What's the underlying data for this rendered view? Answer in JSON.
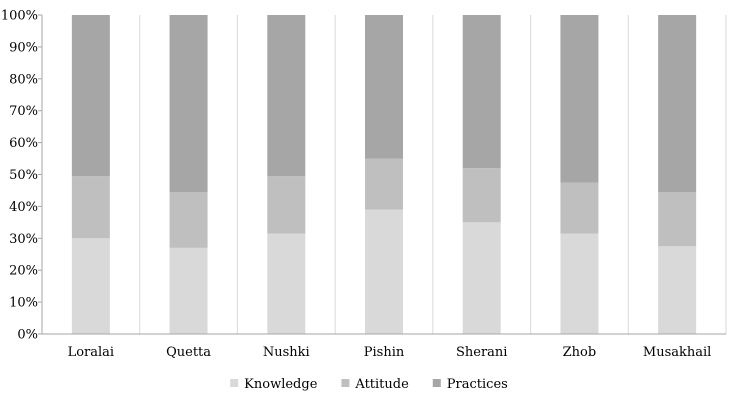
{
  "chart_data": {
    "type": "bar",
    "stacked": true,
    "percent_stacked": true,
    "categories": [
      "Loralai",
      "Quetta",
      "Nushki",
      "Pishin",
      "Sherani",
      "Zhob",
      "Musakhail"
    ],
    "series": [
      {
        "name": "Knowledge",
        "values": [
          30,
          27,
          31.5,
          39,
          35,
          31.5,
          27.5
        ],
        "color": "#d9d9d9"
      },
      {
        "name": "Attitude",
        "values": [
          19.5,
          17.5,
          18,
          16,
          17,
          16,
          17
        ],
        "color": "#bfbfbf"
      },
      {
        "name": "Practices",
        "values": [
          50.5,
          55.5,
          50.5,
          45,
          48,
          52.5,
          55.5
        ],
        "color": "#a6a6a6"
      }
    ],
    "y_ticks": [
      "0%",
      "10%",
      "20%",
      "30%",
      "40%",
      "50%",
      "60%",
      "70%",
      "80%",
      "90%",
      "100%"
    ],
    "ylim": [
      0,
      100
    ],
    "grid": "vertical separators between categories",
    "legend_position": "bottom-center",
    "title": "",
    "xlabel": "",
    "ylabel": ""
  }
}
